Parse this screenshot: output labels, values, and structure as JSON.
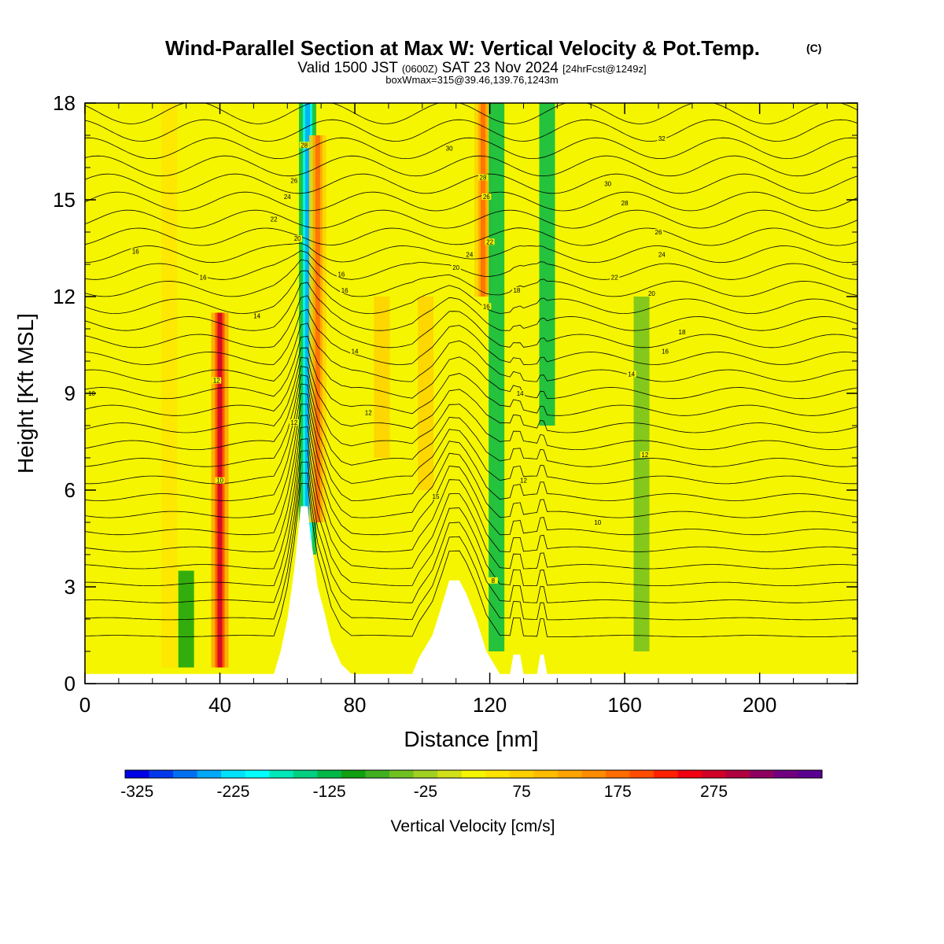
{
  "title": {
    "main": "Wind-Parallel Section at Max W: Vertical Velocity & Pot.Temp.",
    "copyright": "(C)",
    "valid_a": "Valid 1500 JST ",
    "valid_b": "(0600Z)",
    "valid_c": " SAT 23 Nov 2024 ",
    "valid_d": "[24hrFcst@1249z]",
    "boxline": "boxWmax=315@39.46,139.76,1243m"
  },
  "chart_data": {
    "type": "heatmap",
    "xlabel": "Distance [nm]",
    "ylabel": "Height [Kft MSL]",
    "xlim": [
      0,
      229
    ],
    "ylim": [
      0,
      18
    ],
    "x_ticks": [
      0,
      40,
      80,
      120,
      160,
      200
    ],
    "x_tick_labels": [
      "0",
      "40",
      "80",
      "120",
      "160",
      "200"
    ],
    "y_ticks": [
      0,
      3,
      6,
      9,
      12,
      15,
      18
    ],
    "y_tick_labels": [
      "0",
      "3",
      "6",
      "9",
      "12",
      "15",
      "18"
    ],
    "terrain": [
      [
        0,
        0.3
      ],
      [
        56,
        0.3
      ],
      [
        58,
        1.0
      ],
      [
        60,
        2.0
      ],
      [
        62,
        3.5
      ],
      [
        64,
        5.5
      ],
      [
        66,
        5.5
      ],
      [
        67,
        4.5
      ],
      [
        69,
        3.0
      ],
      [
        71,
        2.2
      ],
      [
        73,
        1.3
      ],
      [
        76,
        0.6
      ],
      [
        79,
        0.3
      ],
      [
        97,
        0.3
      ],
      [
        99,
        0.8
      ],
      [
        103,
        1.5
      ],
      [
        106,
        2.5
      ],
      [
        108,
        3.2
      ],
      [
        111,
        3.2
      ],
      [
        113,
        2.8
      ],
      [
        116,
        2.0
      ],
      [
        119,
        1.0
      ],
      [
        123,
        0.3
      ],
      [
        126,
        0.3
      ],
      [
        127,
        0.9
      ],
      [
        129,
        0.9
      ],
      [
        130,
        0.3
      ],
      [
        134,
        0.3
      ],
      [
        135,
        0.9
      ],
      [
        136,
        0.9
      ],
      [
        137,
        0.3
      ],
      [
        229,
        0.3
      ]
    ],
    "w_features": [
      {
        "x": 40,
        "z0": 0.5,
        "z1": 11.5,
        "w": 275
      },
      {
        "x": 66,
        "z0": 4.0,
        "z1": 18,
        "w": -230
      },
      {
        "x": 69,
        "z0": 5.0,
        "z1": 17,
        "w": 175
      },
      {
        "x": 118,
        "z0": 12,
        "z1": 18,
        "w": 175
      },
      {
        "x": 122,
        "z0": 1.0,
        "z1": 18,
        "w": -125
      },
      {
        "x": 137,
        "z0": 8,
        "z1": 18,
        "w": -125
      },
      {
        "x": 30,
        "z0": 0.5,
        "z1": 3.5,
        "w": -100
      },
      {
        "x": 88,
        "z0": 7,
        "z1": 12,
        "w": 75
      },
      {
        "x": 101,
        "z0": 6,
        "z1": 12,
        "w": 75
      },
      {
        "x": 165,
        "z0": 1,
        "z1": 12,
        "w": -50
      },
      {
        "x": 200,
        "z0": 1,
        "z1": 18,
        "w": 25
      },
      {
        "x": 25,
        "z0": 0.5,
        "z1": 18,
        "w": 50
      }
    ],
    "theta_contours": [
      {
        "level": 8,
        "label": "8",
        "label_x": 121,
        "label_z": 3.2
      },
      {
        "level": 10,
        "label": "10",
        "label_x": 40,
        "label_z": 6.3
      },
      {
        "level": 10,
        "label": "10",
        "label_x": 2,
        "label_z": 9.0
      },
      {
        "level": 10,
        "label": "10",
        "label_x": 152,
        "label_z": 5.0
      },
      {
        "level": 12,
        "label": "12",
        "label_x": 39,
        "label_z": 9.4
      },
      {
        "level": 12,
        "label": "12",
        "label_x": 62,
        "label_z": 8.1
      },
      {
        "level": 12,
        "label": "12",
        "label_x": 84,
        "label_z": 8.4
      },
      {
        "level": 12,
        "label": "12",
        "label_x": 130,
        "label_z": 6.3
      },
      {
        "level": 12,
        "label": "12",
        "label_x": 166,
        "label_z": 7.1
      },
      {
        "level": 14,
        "label": "14",
        "label_x": 51,
        "label_z": 11.4
      },
      {
        "level": 14,
        "label": "14",
        "label_x": 80,
        "label_z": 10.3
      },
      {
        "level": 14,
        "label": "14",
        "label_x": 129,
        "label_z": 9.0
      },
      {
        "level": 14,
        "label": "14",
        "label_x": 162,
        "label_z": 9.6
      },
      {
        "level": 15,
        "label": "15",
        "label_x": 104,
        "label_z": 5.8
      },
      {
        "level": 16,
        "label": "16",
        "label_x": 15,
        "label_z": 13.4
      },
      {
        "level": 16,
        "label": "16",
        "label_x": 35,
        "label_z": 12.6
      },
      {
        "level": 16,
        "label": "16",
        "label_x": 76,
        "label_z": 12.7
      },
      {
        "level": 16,
        "label": "16",
        "label_x": 77,
        "label_z": 12.2
      },
      {
        "level": 16,
        "label": "16",
        "label_x": 119,
        "label_z": 11.7
      },
      {
        "level": 16,
        "label": "16",
        "label_x": 172,
        "label_z": 10.3
      },
      {
        "level": 18,
        "label": "18",
        "label_x": 128,
        "label_z": 12.2
      },
      {
        "level": 18,
        "label": "18",
        "label_x": 177,
        "label_z": 10.9
      },
      {
        "level": 20,
        "label": "20",
        "label_x": 63,
        "label_z": 13.8
      },
      {
        "level": 20,
        "label": "20",
        "label_x": 110,
        "label_z": 12.9
      },
      {
        "level": 20,
        "label": "20",
        "label_x": 168,
        "label_z": 12.1
      },
      {
        "level": 22,
        "label": "22",
        "label_x": 56,
        "label_z": 14.4
      },
      {
        "level": 22,
        "label": "22",
        "label_x": 120,
        "label_z": 13.7
      },
      {
        "level": 22,
        "label": "22",
        "label_x": 157,
        "label_z": 12.6
      },
      {
        "level": 24,
        "label": "24",
        "label_x": 60,
        "label_z": 15.1
      },
      {
        "level": 24,
        "label": "24",
        "label_x": 114,
        "label_z": 13.3
      },
      {
        "level": 24,
        "label": "24",
        "label_x": 171,
        "label_z": 13.3
      },
      {
        "level": 26,
        "label": "26",
        "label_x": 62,
        "label_z": 15.6
      },
      {
        "level": 26,
        "label": "26",
        "label_x": 119,
        "label_z": 15.1
      },
      {
        "level": 26,
        "label": "26",
        "label_x": 170,
        "label_z": 14.0
      },
      {
        "level": 28,
        "label": "28",
        "label_x": 65,
        "label_z": 16.7
      },
      {
        "level": 28,
        "label": "28",
        "label_x": 118,
        "label_z": 15.7
      },
      {
        "level": 28,
        "label": "28",
        "label_x": 160,
        "label_z": 14.9
      },
      {
        "level": 30,
        "label": "30",
        "label_x": 108,
        "label_z": 16.6
      },
      {
        "level": 30,
        "label": "30",
        "label_x": 155,
        "label_z": 15.5
      },
      {
        "level": 32,
        "label": "32",
        "label_x": 171,
        "label_z": 16.9
      }
    ],
    "colorbar": {
      "label": "Vertical Velocity [cm/s]",
      "tick_values": [
        -325,
        -225,
        -125,
        -25,
        75,
        175,
        275
      ],
      "tick_labels": [
        "-325",
        "-225",
        "-125",
        "-25",
        "75",
        "175",
        "275"
      ],
      "bin_width": 25,
      "colors": [
        "#0000e6",
        "#0038ec",
        "#0070f2",
        "#00a8f7",
        "#00e2fb",
        "#00ffff",
        "#00e8b8",
        "#00d080",
        "#00b848",
        "#10a010",
        "#40b020",
        "#70c020",
        "#a0d020",
        "#d0e018",
        "#f5f500",
        "#ffe400",
        "#ffd000",
        "#ffbc00",
        "#ffa400",
        "#ff8c00",
        "#ff6c00",
        "#ff4c00",
        "#ff2000",
        "#f00010",
        "#d00028",
        "#b00040",
        "#8e0060",
        "#700080",
        "#5a0090"
      ]
    }
  }
}
